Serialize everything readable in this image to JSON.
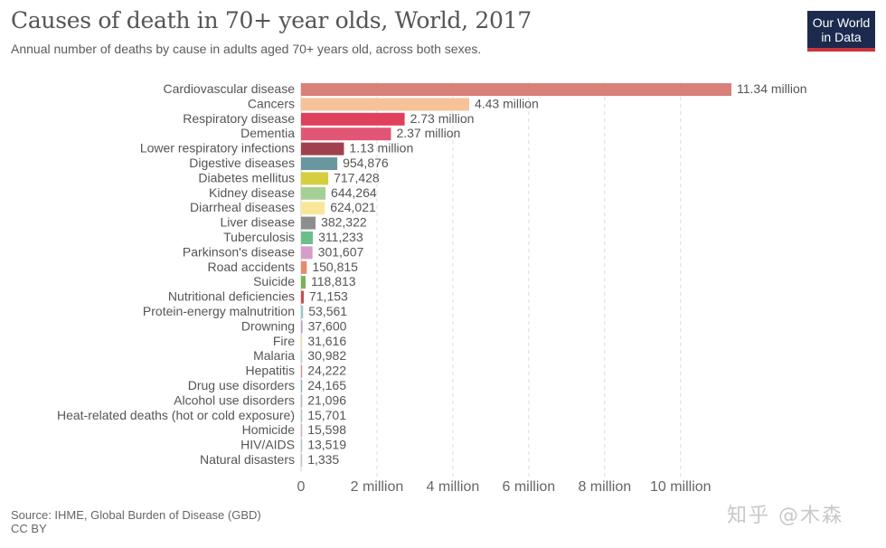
{
  "header": {
    "title": "Causes of death in 70+ year olds, World, 2017",
    "subtitle": "Annual number of deaths by cause in adults aged 70+ years old, across both sexes.",
    "logo_line1": "Our World",
    "logo_line2": "in Data"
  },
  "footer": {
    "source": "Source: IHME, Global Burden of Disease (GBD)",
    "license": "CC BY",
    "watermark": "知乎 @木森"
  },
  "chart_data": {
    "type": "bar",
    "orientation": "horizontal",
    "title": "Causes of death in 70+ year olds, World, 2017",
    "subtitle": "Annual number of deaths by cause in adults aged 70+ years old, across both sexes.",
    "xlabel": "",
    "ylabel": "",
    "xlim": [
      0,
      11340000
    ],
    "grid": "vertical dashed",
    "x_ticks": [
      {
        "value": 0,
        "label": "0"
      },
      {
        "value": 2000000,
        "label": "2 million"
      },
      {
        "value": 4000000,
        "label": "4 million"
      },
      {
        "value": 6000000,
        "label": "6 million"
      },
      {
        "value": 8000000,
        "label": "8 million"
      },
      {
        "value": 10000000,
        "label": "10 million"
      }
    ],
    "categories": [
      "Cardiovascular disease",
      "Cancers",
      "Respiratory disease",
      "Dementia",
      "Lower respiratory infections",
      "Digestive diseases",
      "Diabetes mellitus",
      "Kidney disease",
      "Diarrheal diseases",
      "Liver disease",
      "Tuberculosis",
      "Parkinson's disease",
      "Road accidents",
      "Suicide",
      "Nutritional deficiencies",
      "Protein-energy malnutrition",
      "Drowning",
      "Fire",
      "Malaria",
      "Hepatitis",
      "Drug use disorders",
      "Alcohol use disorders",
      "Heat-related deaths (hot or cold exposure)",
      "Homicide",
      "HIV/AIDS",
      "Natural disasters"
    ],
    "values": [
      11340000,
      4430000,
      2730000,
      2370000,
      1130000,
      954876,
      717428,
      644264,
      624021,
      382322,
      311233,
      301607,
      150815,
      118813,
      71153,
      53561,
      37600,
      31616,
      30982,
      24222,
      24165,
      21096,
      15701,
      15598,
      13519,
      1335
    ],
    "value_labels": [
      "11.34 million",
      "4.43 million",
      "2.73 million",
      "2.37 million",
      "1.13 million",
      "954,876",
      "717,428",
      "644,264",
      "624,021",
      "382,322",
      "311,233",
      "301,607",
      "150,815",
      "118,813",
      "71,153",
      "53,561",
      "37,600",
      "31,616",
      "30,982",
      "24,222",
      "24,165",
      "21,096",
      "15,701",
      "15,598",
      "13,519",
      "1,335"
    ],
    "colors": [
      "#d9807b",
      "#f6c298",
      "#e0405c",
      "#e25675",
      "#a0404f",
      "#6a979d",
      "#d5cf3f",
      "#a6cf96",
      "#f8e79a",
      "#8e8e8e",
      "#6bbf8a",
      "#d39ec8",
      "#e88a70",
      "#78b552",
      "#c94b4b",
      "#9cc6d0",
      "#b8a0c8",
      "#f2e2a0",
      "#bcd6c5",
      "#d98f8f",
      "#8fb0c0",
      "#b0b0b0",
      "#a8c0d0",
      "#c8b0b0",
      "#b0c0d8",
      "#c0c0c0"
    ]
  }
}
